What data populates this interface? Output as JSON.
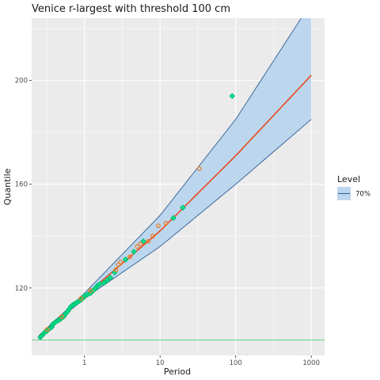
{
  "chart_data": {
    "type": "line",
    "title": "Venice r-largest with threshold 100 cm",
    "xlabel": "Period",
    "ylabel": "Quantile",
    "x_scale": "log10",
    "xlim": [
      0.2,
      1500
    ],
    "ylim": [
      94,
      224
    ],
    "x_ticks": [
      1,
      10,
      100,
      1000
    ],
    "x_tick_labels": [
      "1",
      "10",
      "100",
      "1000"
    ],
    "y_ticks": [
      120,
      160,
      200
    ],
    "y_tick_labels": [
      "120",
      "160",
      "200"
    ],
    "grid": true,
    "threshold": 100,
    "colors": {
      "panel": "#ebebeb",
      "grid": "#ffffff",
      "band_fill": "#bcd6ee",
      "band_edge": "#3f6b9a",
      "fit_line": "#e8491d",
      "threshold_line": "#33cc66",
      "points_green": "#00e08a",
      "points_green_edge": "#00b36b",
      "points_orange": "#e8822a"
    },
    "fit_line": [
      {
        "x": 0.25,
        "y": 101.5
      },
      {
        "x": 1,
        "y": 117
      },
      {
        "x": 10,
        "y": 142
      },
      {
        "x": 100,
        "y": 171
      },
      {
        "x": 1000,
        "y": 202
      }
    ],
    "band_lower": [
      {
        "x": 0.25,
        "y": 101.3
      },
      {
        "x": 1,
        "y": 116
      },
      {
        "x": 10,
        "y": 136
      },
      {
        "x": 100,
        "y": 160
      },
      {
        "x": 1000,
        "y": 185
      }
    ],
    "band_upper": [
      {
        "x": 0.25,
        "y": 101.7
      },
      {
        "x": 1,
        "y": 118
      },
      {
        "x": 10,
        "y": 148
      },
      {
        "x": 100,
        "y": 185
      },
      {
        "x": 1000,
        "y": 230
      }
    ],
    "series": [
      {
        "marker": "diamond",
        "color": "green",
        "points": [
          {
            "x": 0.26,
            "y": 101
          },
          {
            "x": 0.27,
            "y": 101.5
          },
          {
            "x": 0.28,
            "y": 102
          },
          {
            "x": 0.29,
            "y": 102.5
          },
          {
            "x": 0.3,
            "y": 103
          },
          {
            "x": 0.32,
            "y": 103.5
          },
          {
            "x": 0.33,
            "y": 104
          },
          {
            "x": 0.35,
            "y": 104.5
          },
          {
            "x": 0.37,
            "y": 105
          },
          {
            "x": 0.38,
            "y": 106
          },
          {
            "x": 0.4,
            "y": 106.5
          },
          {
            "x": 0.42,
            "y": 107
          },
          {
            "x": 0.45,
            "y": 107.5
          },
          {
            "x": 0.48,
            "y": 108
          },
          {
            "x": 0.5,
            "y": 108.5
          },
          {
            "x": 0.53,
            "y": 109
          },
          {
            "x": 0.56,
            "y": 110
          },
          {
            "x": 0.6,
            "y": 111
          },
          {
            "x": 0.63,
            "y": 112
          },
          {
            "x": 0.67,
            "y": 113
          },
          {
            "x": 0.7,
            "y": 113.5
          },
          {
            "x": 0.75,
            "y": 114
          },
          {
            "x": 0.8,
            "y": 114.5
          },
          {
            "x": 0.85,
            "y": 115
          },
          {
            "x": 0.9,
            "y": 115.5
          },
          {
            "x": 0.95,
            "y": 116
          },
          {
            "x": 1.0,
            "y": 117
          },
          {
            "x": 1.1,
            "y": 117.5
          },
          {
            "x": 1.2,
            "y": 118
          },
          {
            "x": 1.3,
            "y": 119
          },
          {
            "x": 1.4,
            "y": 120
          },
          {
            "x": 1.5,
            "y": 121
          },
          {
            "x": 1.6,
            "y": 121.5
          },
          {
            "x": 1.8,
            "y": 122
          },
          {
            "x": 2.0,
            "y": 123
          },
          {
            "x": 2.2,
            "y": 124
          },
          {
            "x": 2.5,
            "y": 126
          },
          {
            "x": 3.5,
            "y": 131
          },
          {
            "x": 4.5,
            "y": 134
          },
          {
            "x": 6,
            "y": 138
          },
          {
            "x": 15,
            "y": 147
          },
          {
            "x": 20,
            "y": 151
          },
          {
            "x": 90,
            "y": 194
          }
        ]
      },
      {
        "marker": "circle",
        "color": "orange",
        "points": [
          {
            "x": 0.32,
            "y": 104
          },
          {
            "x": 0.5,
            "y": 109
          },
          {
            "x": 0.9,
            "y": 116
          },
          {
            "x": 1.2,
            "y": 119
          },
          {
            "x": 2.6,
            "y": 127
          },
          {
            "x": 2.8,
            "y": 129
          },
          {
            "x": 3.0,
            "y": 130
          },
          {
            "x": 4,
            "y": 132
          },
          {
            "x": 5,
            "y": 136
          },
          {
            "x": 5.5,
            "y": 137
          },
          {
            "x": 7,
            "y": 138
          },
          {
            "x": 8,
            "y": 140
          },
          {
            "x": 9.5,
            "y": 144
          },
          {
            "x": 12,
            "y": 145
          },
          {
            "x": 33,
            "y": 166
          }
        ]
      }
    ],
    "legend": {
      "title": "Level",
      "entries": [
        {
          "label": "70%"
        }
      ],
      "position": "right"
    }
  }
}
